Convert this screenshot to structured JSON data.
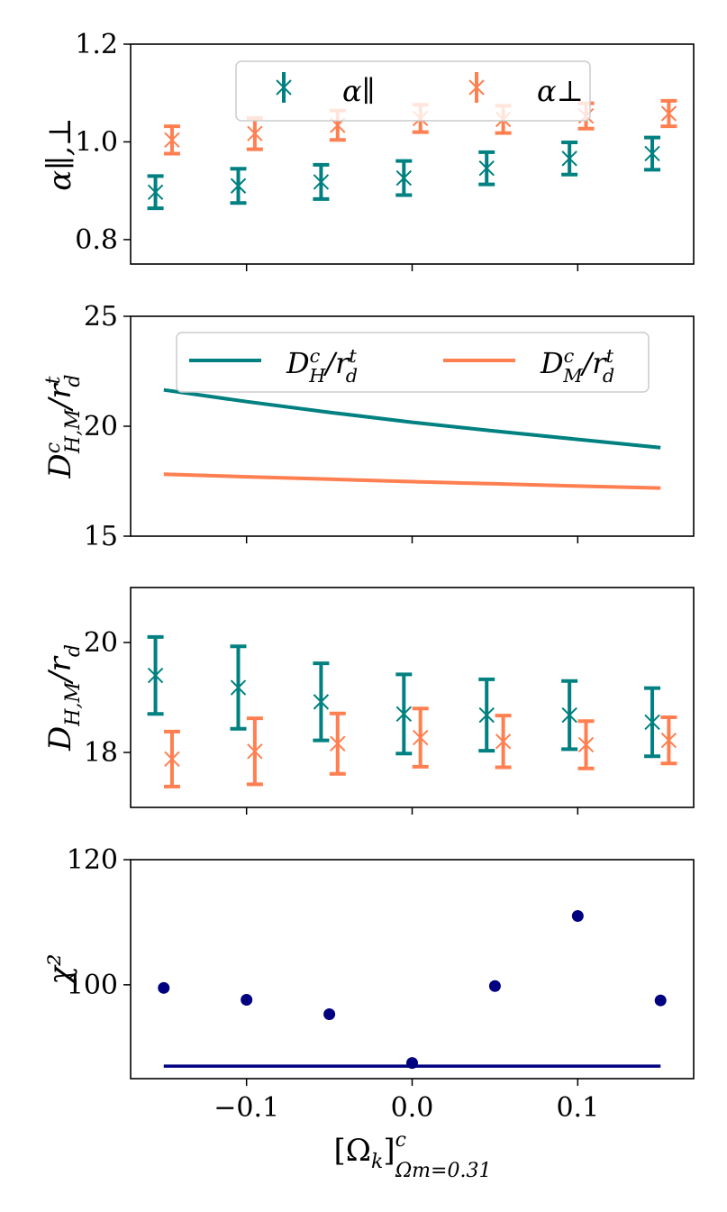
{
  "colors": {
    "teal": "#008080",
    "orange": "#ff7f50",
    "navy": "#000080"
  },
  "xlabel": {
    "main": "[Ω",
    "k": "k",
    "close": "]",
    "sup": "c",
    "sub": "Ωm=0.31"
  },
  "chart_data": [
    {
      "type": "scatter",
      "ylabel": "α∥,⊥",
      "ylim": [
        0.75,
        1.2
      ],
      "yticks": [
        0.8,
        1.0,
        1.2
      ],
      "ytick_labels": [
        "0.8",
        "1.0",
        "1.2"
      ],
      "xlim": [
        -0.17,
        0.17
      ],
      "xticks": [
        -0.1,
        0.0,
        0.1
      ],
      "legend": {
        "location": "top-center",
        "entries": [
          "α∥",
          "α⊥"
        ]
      },
      "series": [
        {
          "name": "α∥",
          "color": "teal",
          "x": [
            -0.155,
            -0.105,
            -0.055,
            -0.005,
            0.045,
            0.095,
            0.145
          ],
          "y": [
            0.897,
            0.91,
            0.918,
            0.926,
            0.946,
            0.966,
            0.976
          ],
          "yerr": [
            0.033,
            0.035,
            0.035,
            0.035,
            0.033,
            0.033,
            0.033
          ]
        },
        {
          "name": "α⊥",
          "color": "orange",
          "x": [
            -0.145,
            -0.095,
            -0.045,
            0.005,
            0.055,
            0.105,
            0.155
          ],
          "y": [
            1.004,
            1.017,
            1.034,
            1.048,
            1.046,
            1.053,
            1.058
          ],
          "yerr": [
            0.028,
            0.032,
            0.03,
            0.028,
            0.028,
            0.026,
            0.026
          ]
        }
      ]
    },
    {
      "type": "line",
      "ylabel": "D^c_{H,M}/r^t_d",
      "ylim": [
        15,
        25
      ],
      "yticks": [
        15,
        20,
        25
      ],
      "ytick_labels": [
        "15",
        "20",
        "25"
      ],
      "xlim": [
        -0.17,
        0.17
      ],
      "xticks": [
        -0.1,
        0.0,
        0.1
      ],
      "legend": {
        "location": "top-center",
        "entries": [
          "D^c_H/r^t_d",
          "D^c_M/r^t_d"
        ]
      },
      "series": [
        {
          "name": "D^c_H/r^t_d",
          "color": "teal",
          "x": [
            -0.15,
            -0.1,
            -0.05,
            0.0,
            0.05,
            0.1,
            0.15
          ],
          "y": [
            21.65,
            21.12,
            20.63,
            20.18,
            19.78,
            19.4,
            19.03
          ]
        },
        {
          "name": "D^c_M/r^t_d",
          "color": "orange",
          "x": [
            -0.15,
            -0.1,
            -0.05,
            0.0,
            0.05,
            0.1,
            0.15
          ],
          "y": [
            17.82,
            17.7,
            17.59,
            17.48,
            17.38,
            17.28,
            17.19
          ]
        }
      ]
    },
    {
      "type": "scatter",
      "ylabel": "D_{H,M}/r_d",
      "ylim": [
        17.0,
        21.0
      ],
      "yticks": [
        18,
        20
      ],
      "ytick_labels": [
        "18",
        "20"
      ],
      "xlim": [
        -0.17,
        0.17
      ],
      "xticks": [
        -0.1,
        0.0,
        0.1
      ],
      "series": [
        {
          "name": "D_H/r_d",
          "color": "teal",
          "x": [
            -0.155,
            -0.105,
            -0.055,
            -0.005,
            0.045,
            0.095,
            0.145
          ],
          "y": [
            19.4,
            19.18,
            18.92,
            18.7,
            18.68,
            18.68,
            18.55
          ],
          "yerr": [
            0.7,
            0.75,
            0.7,
            0.72,
            0.65,
            0.62,
            0.62
          ]
        },
        {
          "name": "D_M/r_d",
          "color": "orange",
          "x": [
            -0.145,
            -0.095,
            -0.045,
            0.005,
            0.055,
            0.105,
            0.155
          ],
          "y": [
            17.88,
            18.02,
            18.16,
            18.27,
            18.2,
            18.14,
            18.22
          ],
          "yerr": [
            0.5,
            0.6,
            0.55,
            0.53,
            0.47,
            0.43,
            0.42
          ]
        }
      ]
    },
    {
      "type": "scatter",
      "ylabel": "χ²",
      "ylim": [
        85,
        120
      ],
      "yticks": [
        100,
        120
      ],
      "ytick_labels": [
        "100",
        "120"
      ],
      "xlim": [
        -0.17,
        0.17
      ],
      "xticks": [
        -0.1,
        0.0,
        0.1
      ],
      "xtick_labels": [
        "−0.1",
        "0.0",
        "0.1"
      ],
      "series": [
        {
          "name": "χ²",
          "color": "navy",
          "x": [
            -0.15,
            -0.1,
            -0.05,
            0.0,
            0.05,
            0.1,
            0.15
          ],
          "y": [
            99.5,
            97.6,
            95.3,
            87.5,
            99.8,
            111.0,
            97.5
          ]
        }
      ],
      "hline": {
        "y": 87.0,
        "x": [
          -0.15,
          0.15
        ],
        "color": "navy"
      }
    }
  ]
}
